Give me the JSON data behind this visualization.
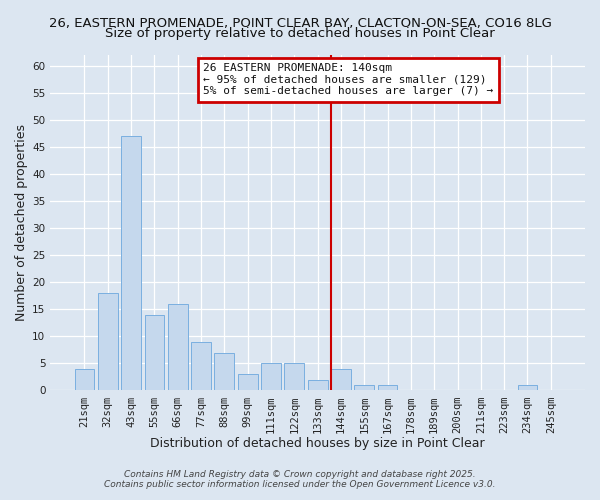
{
  "title": "26, EASTERN PROMENADE, POINT CLEAR BAY, CLACTON-ON-SEA, CO16 8LG",
  "subtitle": "Size of property relative to detached houses in Point Clear",
  "xlabel": "Distribution of detached houses by size in Point Clear",
  "ylabel": "Number of detached properties",
  "categories": [
    "21sqm",
    "32sqm",
    "43sqm",
    "55sqm",
    "66sqm",
    "77sqm",
    "88sqm",
    "99sqm",
    "111sqm",
    "122sqm",
    "133sqm",
    "144sqm",
    "155sqm",
    "167sqm",
    "178sqm",
    "189sqm",
    "200sqm",
    "211sqm",
    "223sqm",
    "234sqm",
    "245sqm"
  ],
  "values": [
    4,
    18,
    47,
    14,
    16,
    9,
    7,
    3,
    5,
    5,
    2,
    4,
    1,
    1,
    0,
    0,
    0,
    0,
    0,
    1,
    0
  ],
  "bar_color": "#c5d8ed",
  "bar_edge_color": "#7aafe0",
  "ylim": [
    0,
    62
  ],
  "yticks": [
    0,
    5,
    10,
    15,
    20,
    25,
    30,
    35,
    40,
    45,
    50,
    55,
    60
  ],
  "vline_color": "#cc0000",
  "annotation_title": "26 EASTERN PROMENADE: 140sqm",
  "annotation_line1": "← 95% of detached houses are smaller (129)",
  "annotation_line2": "5% of semi-detached houses are larger (7) →",
  "annotation_box_color": "#cc0000",
  "bg_color": "#dce6f1",
  "footer1": "Contains HM Land Registry data © Crown copyright and database right 2025.",
  "footer2": "Contains public sector information licensed under the Open Government Licence v3.0.",
  "title_fontsize": 9.5,
  "subtitle_fontsize": 9.5,
  "axis_label_fontsize": 9,
  "tick_fontsize": 7.5,
  "annotation_fontsize": 8,
  "footer_fontsize": 6.5
}
